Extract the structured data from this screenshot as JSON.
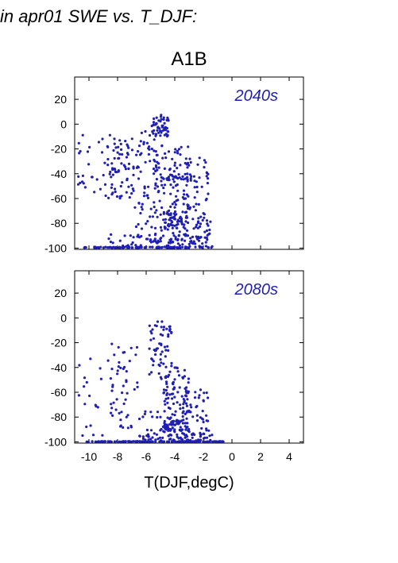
{
  "header_text": "in apr01 SWE vs. T_DJF:",
  "scenario_title": "A1B",
  "point_color": "#1f1fb4",
  "chart_data": [
    {
      "type": "scatter",
      "annotation": "2040s",
      "xlabel": "T(DJF,degC)",
      "ylabel": "",
      "xlim": [
        -11,
        5
      ],
      "ylim": [
        -101,
        38
      ],
      "xticks": [
        -10,
        -8,
        -6,
        -4,
        -2,
        0,
        2,
        4
      ],
      "yticks": [
        20,
        0,
        -20,
        -40,
        -60,
        -80,
        -100
      ],
      "grid": false,
      "clusters": [
        {
          "x": [
            -10.4,
            -1.4
          ],
          "y": [
            -100,
            -99
          ],
          "n": 95
        },
        {
          "x": [
            -8.8,
            -1.2
          ],
          "y": [
            -99,
            -89
          ],
          "n": 55
        },
        {
          "x": [
            -10.8,
            -7.2
          ],
          "y": [
            -55,
            -8
          ],
          "n": 45
        },
        {
          "x": [
            -9.0,
            -6.8
          ],
          "y": [
            -60,
            -10
          ],
          "n": 55
        },
        {
          "x": [
            -6.8,
            -5.3
          ],
          "y": [
            -95,
            -5
          ],
          "n": 65
        },
        {
          "x": [
            -5.6,
            -4.4
          ],
          "y": [
            -10,
            8
          ],
          "n": 50
        },
        {
          "x": [
            -5.4,
            -3.0
          ],
          "y": [
            -98,
            -15
          ],
          "n": 130
        },
        {
          "x": [
            -4.8,
            -3.4
          ],
          "y": [
            -85,
            -70
          ],
          "n": 45
        },
        {
          "x": [
            -3.4,
            -1.6
          ],
          "y": [
            -99,
            -25
          ],
          "n": 75
        },
        {
          "x": [
            -2.4,
            -1.4
          ],
          "y": [
            -92,
            -75
          ],
          "n": 15
        },
        {
          "x": [
            -4.8,
            -2.8
          ],
          "y": [
            -45,
            -40
          ],
          "n": 20
        }
      ]
    },
    {
      "type": "scatter",
      "annotation": "2080s",
      "xlabel": "T(DJF,degC)",
      "ylabel": "",
      "xlim": [
        -11,
        5
      ],
      "ylim": [
        -101,
        38
      ],
      "xticks": [
        -10,
        -8,
        -6,
        -4,
        -2,
        0,
        2,
        4
      ],
      "yticks": [
        20,
        0,
        -20,
        -40,
        -60,
        -80,
        -100
      ],
      "grid": false,
      "clusters": [
        {
          "x": [
            -10.2,
            -0.6
          ],
          "y": [
            -100,
            -99.5
          ],
          "n": 130
        },
        {
          "x": [
            -6.8,
            -1.2
          ],
          "y": [
            -99,
            -94
          ],
          "n": 45
        },
        {
          "x": [
            -10.8,
            -7.5
          ],
          "y": [
            -95,
            -30
          ],
          "n": 30
        },
        {
          "x": [
            -8.5,
            -6.5
          ],
          "y": [
            -90,
            -20
          ],
          "n": 40
        },
        {
          "x": [
            -5.8,
            -4.2
          ],
          "y": [
            -50,
            0
          ],
          "n": 60
        },
        {
          "x": [
            -4.8,
            -3.0
          ],
          "y": [
            -95,
            -40
          ],
          "n": 90
        },
        {
          "x": [
            -4.8,
            -3.4
          ],
          "y": [
            -92,
            -83
          ],
          "n": 40
        },
        {
          "x": [
            -3.4,
            -1.6
          ],
          "y": [
            -95,
            -58
          ],
          "n": 50
        },
        {
          "x": [
            -6.5,
            -3.0
          ],
          "y": [
            -99,
            -75
          ],
          "n": 40
        }
      ]
    }
  ]
}
